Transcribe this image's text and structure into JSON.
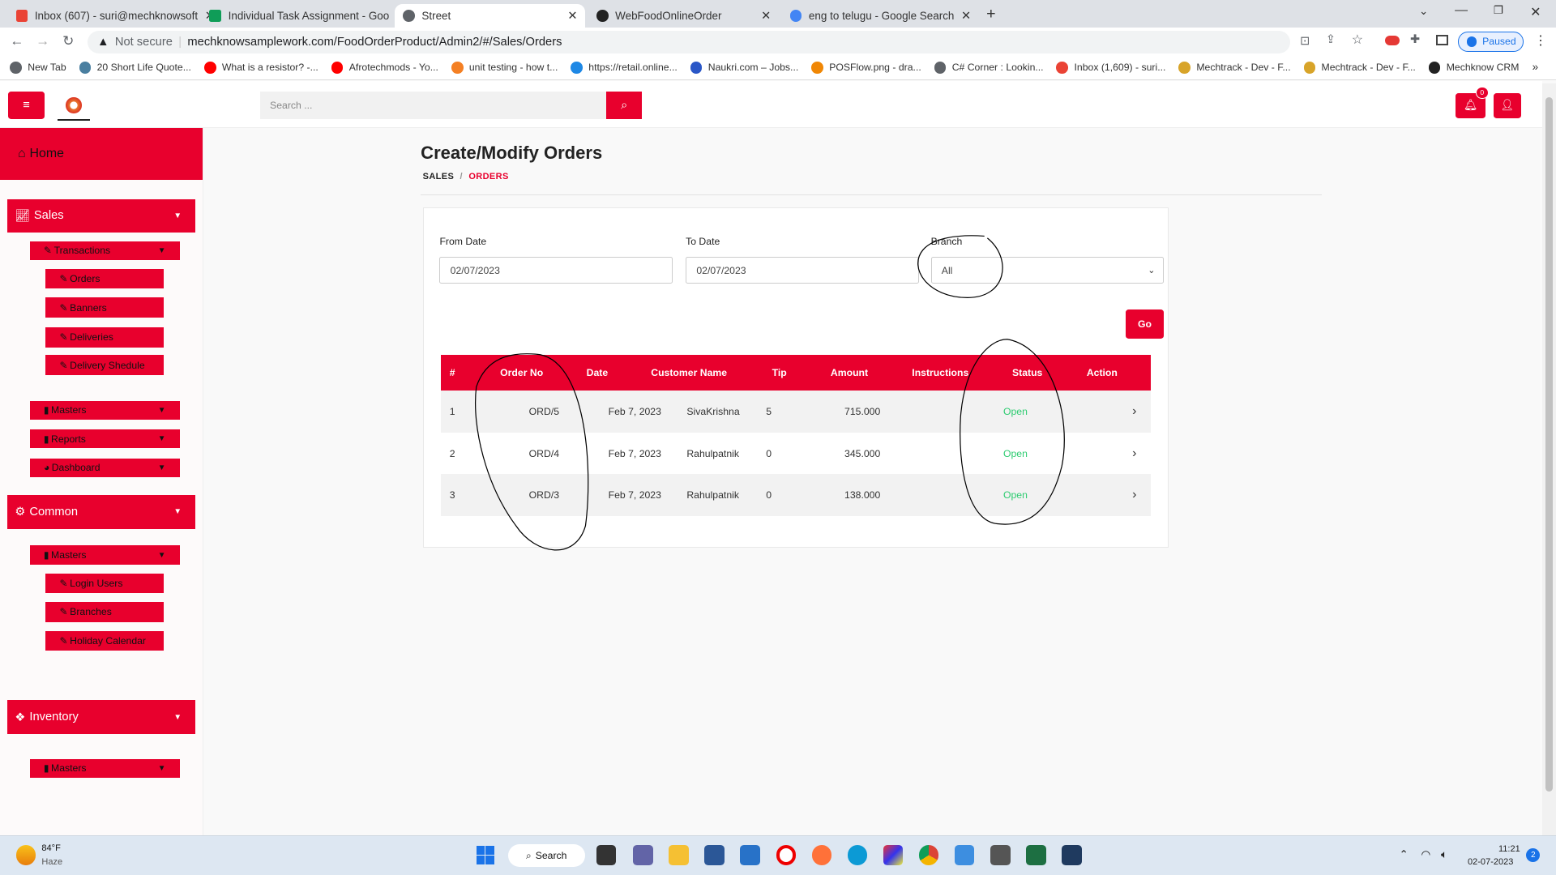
{
  "browser": {
    "tabs": [
      {
        "title": "Inbox (607) - suri@mechknowsoft",
        "icon": "gmail-icon",
        "color": "#ea4335"
      },
      {
        "title": "Individual Task Assignment - Goo",
        "icon": "sheets-icon",
        "color": "#0f9d58"
      },
      {
        "title": "Street",
        "icon": "globe-icon",
        "color": "#5f6368",
        "active": true
      },
      {
        "title": "WebFoodOnlineOrder",
        "icon": "angular-icon",
        "color": "#222"
      },
      {
        "title": "eng to telugu - Google Search",
        "icon": "google-icon",
        "color": "#4285f4"
      }
    ],
    "security": "Not secure",
    "url": "mechknowsamplework.com/FoodOrderProduct/Admin2/#/Sales/Orders",
    "profile_status": "Paused",
    "bookmarks": [
      {
        "label": "New Tab",
        "color": "#5f6368"
      },
      {
        "label": "20 Short Life Quote...",
        "color": "#4a7fa0"
      },
      {
        "label": "What is a resistor? -...",
        "color": "#f00"
      },
      {
        "label": "Afrotechmods - Yo...",
        "color": "#f00"
      },
      {
        "label": "unit testing - how t...",
        "color": "#f48024"
      },
      {
        "label": "https://retail.online...",
        "color": "#1e88e5"
      },
      {
        "label": "Naukri.com – Jobs...",
        "color": "#2a57c7"
      },
      {
        "label": "POSFlow.png - dra...",
        "color": "#f08705"
      },
      {
        "label": "C# Corner : Lookin...",
        "color": "#5f6368"
      },
      {
        "label": "Inbox (1,609) - suri...",
        "color": "#ea4335"
      },
      {
        "label": "Mechtrack - Dev - F...",
        "color": "#d8a429"
      },
      {
        "label": "Mechtrack - Dev - F...",
        "color": "#d8a429"
      },
      {
        "label": "Mechknow CRM",
        "color": "#222"
      }
    ]
  },
  "header": {
    "search_placeholder": "Search ...",
    "notifications": "0"
  },
  "sidebar": {
    "home": "Home",
    "sales": {
      "label": "Sales",
      "transactions": "Transactions",
      "items": [
        "Orders",
        "Banners",
        "Deliveries",
        "Delivery Shedule"
      ],
      "masters": "Masters",
      "reports": "Reports",
      "dashboard": "Dashboard"
    },
    "common": {
      "label": "Common",
      "masters": "Masters",
      "items": [
        "Login Users",
        "Branches",
        "Holiday Calendar"
      ]
    },
    "inventory": {
      "label": "Inventory",
      "masters": "Masters"
    }
  },
  "page": {
    "title": "Create/Modify Orders",
    "breadcrumb": [
      "SALES",
      "ORDERS"
    ],
    "filters": {
      "from_label": "From Date",
      "from_value": "02/07/2023",
      "to_label": "To Date",
      "to_value": "02/07/2023",
      "branch_label": "Branch",
      "branch_value": "All",
      "go": "Go"
    },
    "table": {
      "headers": [
        "#",
        "Order No",
        "Date",
        "Customer Name",
        "Tip",
        "Amount",
        "Instructions",
        "Status",
        "Action"
      ],
      "rows": [
        {
          "n": "1",
          "order": "ORD/5",
          "date": "Feb 7, 2023",
          "customer": "SivaKrishna",
          "tip": "5",
          "amount": "715.000",
          "instructions": "",
          "status": "Open"
        },
        {
          "n": "2",
          "order": "ORD/4",
          "date": "Feb 7, 2023",
          "customer": "Rahulpatnik",
          "tip": "0",
          "amount": "345.000",
          "instructions": "",
          "status": "Open"
        },
        {
          "n": "3",
          "order": "ORD/3",
          "date": "Feb 7, 2023",
          "customer": "Rahulpatnik",
          "tip": "0",
          "amount": "138.000",
          "instructions": "",
          "status": "Open"
        }
      ]
    }
  },
  "colors": {
    "brand": "#e8002d",
    "status_open": "#2ecc71"
  },
  "taskbar": {
    "temp": "84°F",
    "weather": "Haze",
    "search": "Search",
    "time": "11:21",
    "date": "02-07-2023",
    "notif": "2"
  }
}
